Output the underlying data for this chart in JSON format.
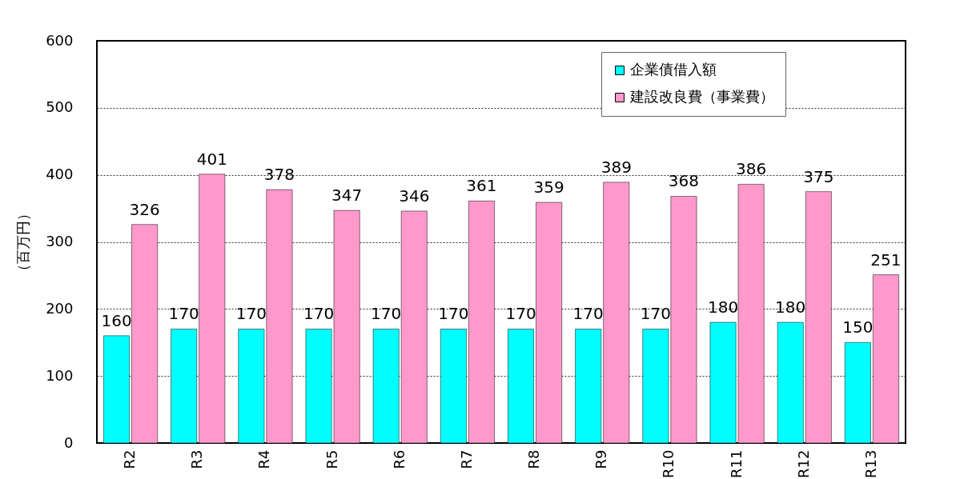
{
  "chart_data": {
    "type": "bar",
    "ylabel": "（百万円）",
    "categories": [
      "R2",
      "R3",
      "R4",
      "R5",
      "R6",
      "R7",
      "R8",
      "R9",
      "R10",
      "R11",
      "R12",
      "R13"
    ],
    "series": [
      {
        "name": "企業債借入額",
        "color": "#00ffff",
        "values": [
          160,
          170,
          170,
          170,
          170,
          170,
          170,
          170,
          170,
          180,
          180,
          150
        ]
      },
      {
        "name": "建設改良費（事業費）",
        "color": "#ff99cc",
        "values": [
          326,
          401,
          378,
          347,
          346,
          361,
          359,
          389,
          368,
          386,
          375,
          251
        ]
      }
    ],
    "ylim": [
      0,
      600
    ],
    "yticks": [
      0,
      100,
      200,
      300,
      400,
      500,
      600
    ],
    "grid": "y",
    "legend": "top right",
    "data_labels": true
  }
}
